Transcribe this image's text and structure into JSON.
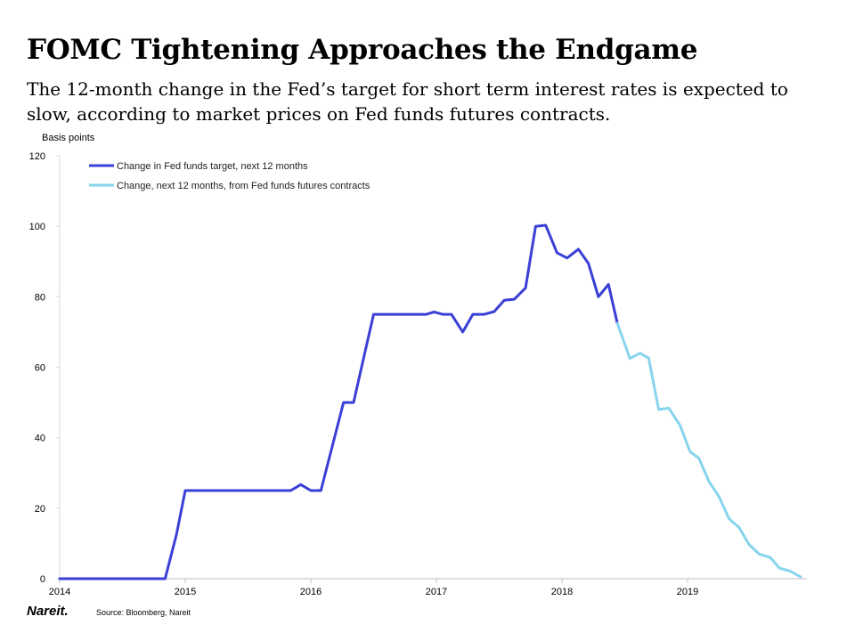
{
  "header": {
    "title": "FOMC Tightening Approaches the Endgame",
    "subtitle": "The 12-month change in the Fed’s target for short term interest rates is expected to slow, according to market prices on Fed funds futures contracts."
  },
  "footer": {
    "logo_text": "Nareit.",
    "source": "Source: Bloomberg, Nareit"
  },
  "chart_data": {
    "type": "line",
    "ylabel": "Basis points",
    "ylim": [
      0,
      120
    ],
    "yticks": [
      0,
      20,
      40,
      60,
      80,
      100,
      120
    ],
    "xlim": [
      2014,
      2019.95
    ],
    "xticks": [
      2014,
      2015,
      2016,
      2017,
      2018,
      2019
    ],
    "legend_position": "top-left",
    "grid": false,
    "series": [
      {
        "name": "Change in Fed funds target, next 12 months",
        "color": "#3a3fd6",
        "points": [
          [
            2014.0,
            0
          ],
          [
            2014.84,
            0
          ],
          [
            2014.93,
            12.5
          ],
          [
            2015.0,
            25
          ],
          [
            2015.84,
            25
          ],
          [
            2015.92,
            26.7
          ],
          [
            2016.0,
            25
          ],
          [
            2016.08,
            25
          ],
          [
            2016.17,
            37.5
          ],
          [
            2016.26,
            50
          ],
          [
            2016.34,
            50
          ],
          [
            2016.42,
            62.5
          ],
          [
            2016.5,
            75
          ],
          [
            2016.92,
            75
          ],
          [
            2016.98,
            75.7
          ],
          [
            2017.05,
            75
          ],
          [
            2017.12,
            75
          ],
          [
            2017.21,
            70
          ],
          [
            2017.29,
            75
          ],
          [
            2017.38,
            75
          ],
          [
            2017.46,
            75.8
          ],
          [
            2017.54,
            79
          ],
          [
            2017.62,
            79.3
          ],
          [
            2017.71,
            82.5
          ],
          [
            2017.79,
            100
          ],
          [
            2017.87,
            100.3
          ],
          [
            2017.96,
            92.5
          ],
          [
            2018.04,
            91
          ],
          [
            2018.13,
            93.5
          ],
          [
            2018.21,
            89.5
          ],
          [
            2018.29,
            80
          ],
          [
            2018.37,
            83.5
          ],
          [
            2018.44,
            72.5
          ]
        ]
      },
      {
        "name": "Change, next 12 months, from Fed funds futures contracts",
        "color": "#87d4ee",
        "points": [
          [
            2018.44,
            72.5
          ],
          [
            2018.54,
            62.5
          ],
          [
            2018.62,
            64
          ],
          [
            2018.69,
            62.6
          ],
          [
            2018.77,
            48
          ],
          [
            2018.85,
            48.4
          ],
          [
            2018.94,
            43.5
          ],
          [
            2019.02,
            36
          ],
          [
            2019.09,
            34.2
          ],
          [
            2019.17,
            27.6
          ],
          [
            2019.25,
            23.3
          ],
          [
            2019.33,
            17
          ],
          [
            2019.41,
            14.5
          ],
          [
            2019.49,
            9.7
          ],
          [
            2019.57,
            7
          ],
          [
            2019.66,
            6
          ],
          [
            2019.73,
            3
          ],
          [
            2019.82,
            2.1
          ],
          [
            2019.9,
            0.5
          ]
        ]
      }
    ]
  }
}
